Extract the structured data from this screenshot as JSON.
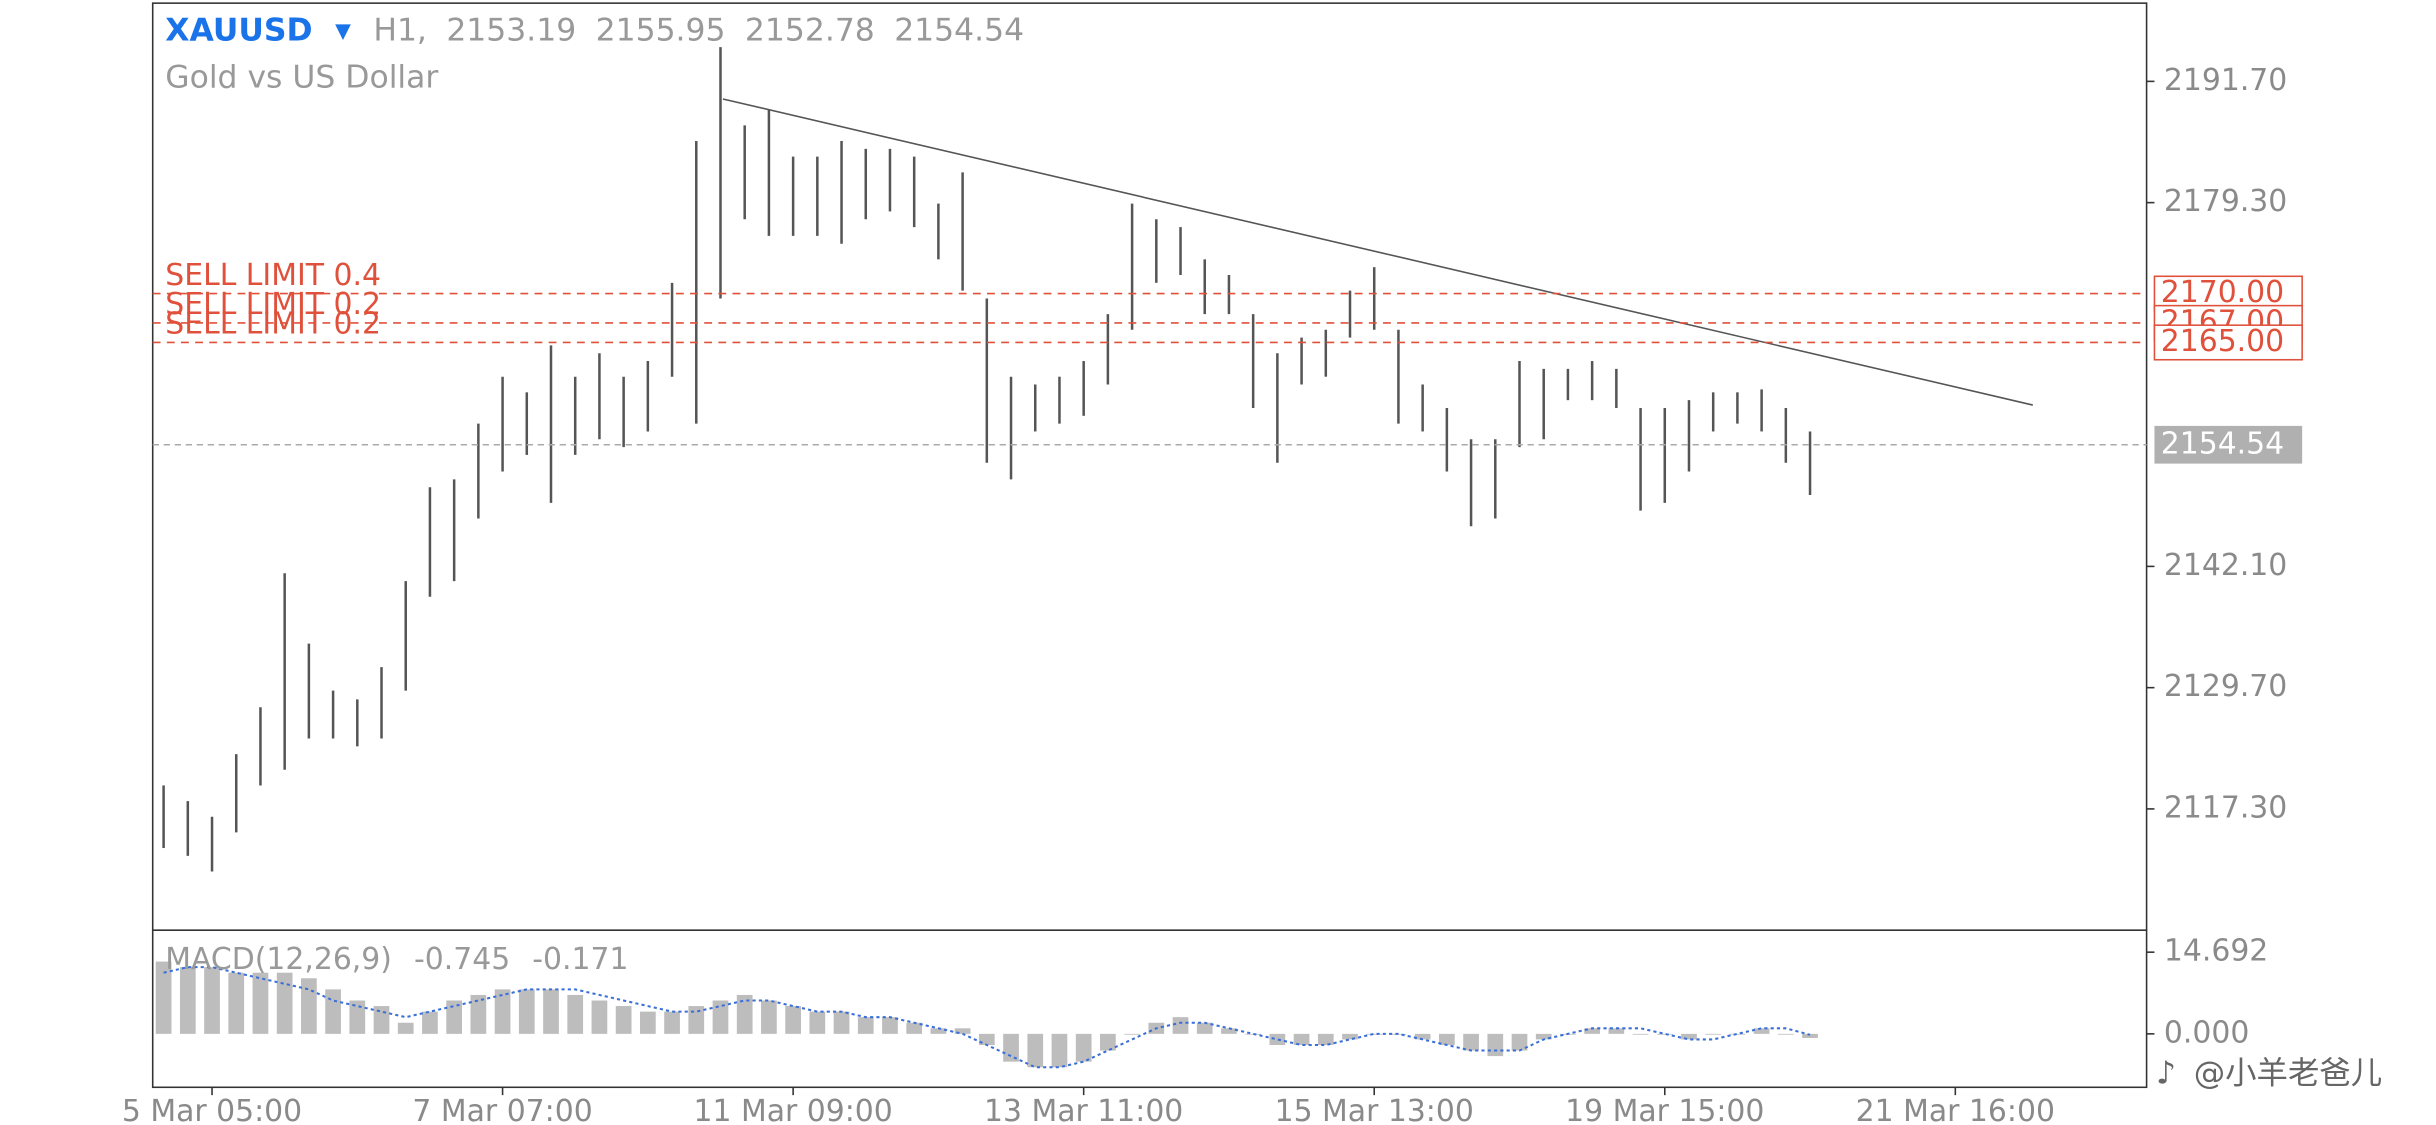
{
  "header": {
    "symbol": "XAUUSD",
    "timeframe": "H1,",
    "ohlc": [
      2153.19,
      2155.95,
      2152.78,
      2154.54
    ],
    "description": "Gold vs US Dollar"
  },
  "watermark": "@小羊老爸儿",
  "chart_data": [
    {
      "type": "range-bars",
      "color": "#555555",
      "high": [
        2119.7,
        2118.1,
        2116.5,
        2122.9,
        2127.7,
        2141.4,
        2134.2,
        2129.4,
        2128.5,
        2131.8,
        2140.6,
        2150.2,
        2151.0,
        2156.7,
        2161.5,
        2159.9,
        2164.7,
        2161.5,
        2163.9,
        2161.5,
        2163.1,
        2171.1,
        2185.6,
        2195.2,
        2187.2,
        2188.8,
        2184.0,
        2184.0,
        2185.6,
        2184.8,
        2184.8,
        2184.0,
        2179.2,
        2182.4,
        2169.5,
        2161.5,
        2160.7,
        2161.5,
        2163.1,
        2167.9,
        2179.2,
        2177.6,
        2176.8,
        2173.5,
        2171.9,
        2167.9,
        2163.9,
        2165.5,
        2166.3,
        2170.3,
        2172.7,
        2166.3,
        2160.7,
        2158.3,
        2155.1,
        2155.1,
        2163.1,
        2162.3,
        2162.3,
        2163.1,
        2162.3,
        2158.3,
        2158.3,
        2159.1,
        2159.9,
        2159.9,
        2160.2,
        2158.3,
        2155.9
      ],
      "low": [
        2113.3,
        2112.5,
        2110.9,
        2114.9,
        2119.7,
        2121.3,
        2124.5,
        2124.5,
        2123.7,
        2124.5,
        2129.4,
        2139.0,
        2140.6,
        2147.0,
        2151.8,
        2153.5,
        2148.6,
        2153.5,
        2155.1,
        2154.3,
        2155.9,
        2161.5,
        2156.7,
        2169.5,
        2177.6,
        2175.9,
        2175.9,
        2175.9,
        2175.1,
        2177.6,
        2178.4,
        2176.8,
        2173.5,
        2170.3,
        2152.7,
        2151.0,
        2155.9,
        2156.7,
        2157.5,
        2160.7,
        2166.3,
        2171.1,
        2171.9,
        2167.9,
        2167.9,
        2158.3,
        2152.7,
        2160.7,
        2161.5,
        2165.5,
        2166.3,
        2156.7,
        2155.9,
        2151.8,
        2146.2,
        2147.0,
        2154.3,
        2155.1,
        2159.1,
        2159.1,
        2158.3,
        2147.8,
        2148.6,
        2151.8,
        2155.9,
        2156.7,
        2155.9,
        2152.7,
        2149.4
      ],
      "xlim": [
        -0.45,
        81.9
      ],
      "ylim": [
        2104.9,
        2199.7
      ],
      "yticks": [
        {
          "value": 2191.7,
          "label": "2191.70"
        },
        {
          "value": 2179.3,
          "label": "2179.30"
        },
        {
          "value": 2142.1,
          "label": "2142.10"
        },
        {
          "value": 2129.7,
          "label": "2129.70"
        },
        {
          "value": 2117.3,
          "label": "2117.30"
        }
      ],
      "xticks": [
        {
          "value": 2,
          "label": "5 Mar 05:00"
        },
        {
          "value": 14,
          "label": "7 Mar 07:00"
        },
        {
          "value": 26,
          "label": "11 Mar 09:00"
        },
        {
          "value": 38,
          "label": "13 Mar 11:00"
        },
        {
          "value": 50,
          "label": "15 Mar 13:00"
        },
        {
          "value": 62,
          "label": "19 Mar 15:00"
        },
        {
          "value": 74,
          "label": "21 Mar 16:00"
        }
      ],
      "levels": {
        "values": [
          2170,
          2167,
          2165
        ],
        "value_labels": [
          "2170.00",
          "2167.00",
          "2165.00"
        ],
        "labels": [
          "SELL LIMIT 0.4",
          "SELL LIMIT 0.2",
          "SELL LIMIT 0.2"
        ],
        "color": "#e0513c"
      },
      "last_price": 2154.54,
      "trendline": {
        "x": [
          23.1,
          77.2
        ],
        "y": [
          2189.9,
          2158.6
        ]
      }
    },
    {
      "type": "macd",
      "title": "MACD(12,26,9)",
      "main_value": -0.745,
      "signal_value": -0.171,
      "ylim": [
        -9.61,
        18.65
      ],
      "yticks": [
        14.692,
        {
          "value": 0,
          "label": "0.000"
        }
      ],
      "histogram": {
        "color": "#bdbdbd",
        "values": [
          13,
          12,
          12,
          11,
          11,
          11,
          10,
          8,
          6,
          5,
          2,
          4,
          6,
          7,
          8,
          8,
          8,
          7,
          6,
          5,
          4,
          4,
          5,
          6,
          7,
          6,
          5,
          4,
          4,
          3,
          3,
          2,
          1,
          1,
          -2,
          -5,
          -6,
          -6,
          -5,
          -3,
          0,
          2,
          3,
          2,
          1,
          0,
          -2,
          -2,
          -2,
          -1,
          0,
          0,
          -1,
          -2,
          -3,
          -4,
          -3,
          -1,
          0,
          1,
          1,
          0,
          0,
          -1,
          0,
          0,
          1,
          0,
          -0.745
        ]
      },
      "signal": {
        "color": "#3a6fd8",
        "values": [
          11,
          12,
          12,
          11,
          10,
          9,
          8,
          6,
          5,
          4,
          3,
          4,
          5,
          6,
          7,
          8,
          8,
          8,
          7,
          6,
          5,
          4,
          4,
          5,
          6,
          6,
          5,
          4,
          4,
          3,
          3,
          2,
          1,
          0,
          -2,
          -4,
          -6,
          -6,
          -5,
          -3,
          -1,
          1,
          2,
          2,
          1,
          0,
          -1,
          -2,
          -2,
          -1,
          0,
          0,
          -1,
          -2,
          -3,
          -3,
          -3,
          -1,
          0,
          1,
          1,
          1,
          0,
          -1,
          -1,
          0,
          1,
          1,
          -0.171
        ]
      }
    }
  ]
}
